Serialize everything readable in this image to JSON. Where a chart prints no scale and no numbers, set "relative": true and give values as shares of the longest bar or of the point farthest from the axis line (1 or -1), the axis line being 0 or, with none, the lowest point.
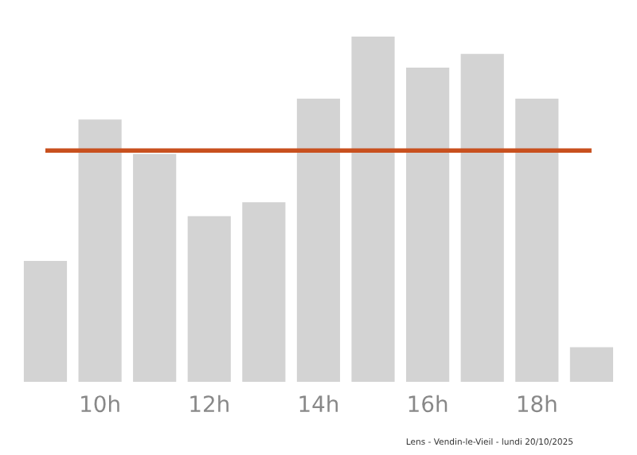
{
  "chart_data": {
    "type": "bar",
    "relative": true,
    "categories": [
      null,
      "10h",
      null,
      "12h",
      null,
      "14h",
      null,
      "16h",
      null,
      "18h",
      null
    ],
    "values": [
      0.35,
      0.76,
      0.66,
      0.48,
      0.52,
      0.82,
      1,
      0.91,
      0.95,
      0.82,
      0.1
    ],
    "color": "#d3d3d3",
    "ref_lines": [
      {
        "axis": "y",
        "value": 0.67,
        "color": "#c8501e",
        "line_style": "solid"
      }
    ],
    "annotations": [
      "Lens - Vendin-le-Vieil - lundi 20/10/2025"
    ],
    "grid": false,
    "legend": false
  }
}
